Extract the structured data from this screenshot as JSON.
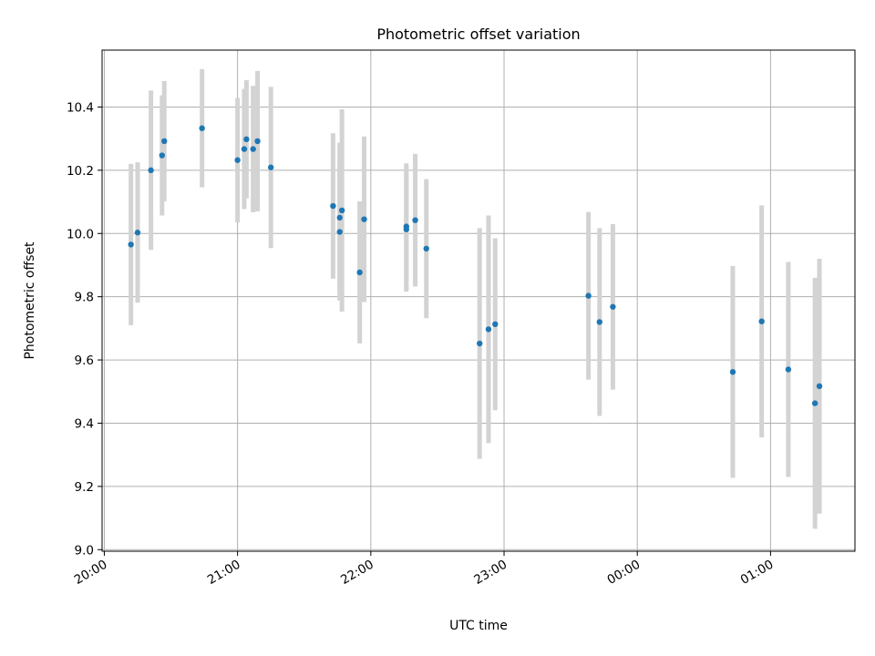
{
  "chart_data": {
    "type": "scatter",
    "title": "Photometric offset variation",
    "xlabel": "UTC time",
    "ylabel": "Photometric offset",
    "x_type": "time",
    "xlim": [
      "19:59",
      "01:38"
    ],
    "ylim": [
      8.995,
      10.58
    ],
    "x_ticks": [
      "20:00",
      "21:00",
      "22:00",
      "23:00",
      "00:00",
      "01:00"
    ],
    "y_ticks": [
      "9.0",
      "9.2",
      "9.4",
      "9.6",
      "9.8",
      "10.0",
      "10.2",
      "10.4"
    ],
    "grid": true,
    "point_color": "#1f77b4",
    "errorbar_color": "#d3d3d3",
    "points": [
      {
        "t": "20:12",
        "y": 9.965,
        "yerr": 0.255
      },
      {
        "t": "20:15",
        "y": 10.003,
        "yerr": 0.222
      },
      {
        "t": "20:21",
        "y": 10.2,
        "yerr": 0.252
      },
      {
        "t": "20:26",
        "y": 10.247,
        "yerr": 0.19
      },
      {
        "t": "20:27",
        "y": 10.292,
        "yerr": 0.19
      },
      {
        "t": "20:44",
        "y": 10.333,
        "yerr": 0.187
      },
      {
        "t": "21:00",
        "y": 10.232,
        "yerr": 0.197
      },
      {
        "t": "21:03",
        "y": 10.267,
        "yerr": 0.19
      },
      {
        "t": "21:04",
        "y": 10.298,
        "yerr": 0.187
      },
      {
        "t": "21:07",
        "y": 10.267,
        "yerr": 0.2
      },
      {
        "t": "21:09",
        "y": 10.292,
        "yerr": 0.222
      },
      {
        "t": "21:15",
        "y": 10.209,
        "yerr": 0.255
      },
      {
        "t": "21:43",
        "y": 10.087,
        "yerr": 0.23
      },
      {
        "t": "21:46",
        "y": 10.05,
        "yerr": 0.237
      },
      {
        "t": "21:46",
        "y": 10.005,
        "yerr": 0.217
      },
      {
        "t": "21:47",
        "y": 10.073,
        "yerr": 0.32
      },
      {
        "t": "21:55",
        "y": 9.877,
        "yerr": 0.225
      },
      {
        "t": "21:57",
        "y": 10.045,
        "yerr": 0.262
      },
      {
        "t": "22:16",
        "y": 10.013,
        "yerr": 0.197
      },
      {
        "t": "22:16",
        "y": 10.022,
        "yerr": 0.2
      },
      {
        "t": "22:20",
        "y": 10.042,
        "yerr": 0.21
      },
      {
        "t": "22:25",
        "y": 9.952,
        "yerr": 0.22
      },
      {
        "t": "22:49",
        "y": 9.652,
        "yerr": 0.365
      },
      {
        "t": "22:53",
        "y": 9.697,
        "yerr": 0.36
      },
      {
        "t": "22:56",
        "y": 9.713,
        "yerr": 0.272
      },
      {
        "t": "23:38",
        "y": 9.803,
        "yerr": 0.265
      },
      {
        "t": "23:43",
        "y": 9.72,
        "yerr": 0.297
      },
      {
        "t": "23:49",
        "y": 9.768,
        "yerr": 0.262
      },
      {
        "t": "00:43",
        "y": 9.562,
        "yerr": 0.335
      },
      {
        "t": "00:56",
        "y": 9.722,
        "yerr": 0.367
      },
      {
        "t": "01:08",
        "y": 9.57,
        "yerr": 0.34
      },
      {
        "t": "01:20",
        "y": 9.463,
        "yerr": 0.397
      },
      {
        "t": "01:22",
        "y": 9.517,
        "yerr": 0.403
      }
    ]
  }
}
